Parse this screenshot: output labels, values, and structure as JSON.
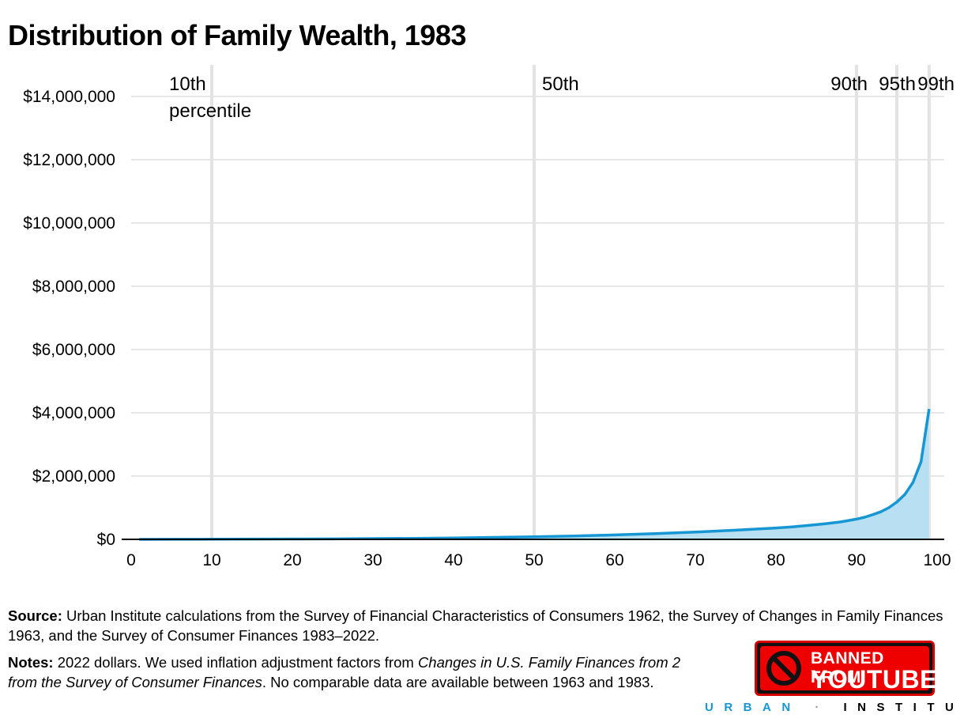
{
  "header": {
    "title": "Distribution of Family Wealth, 1983"
  },
  "chart_data": {
    "type": "area",
    "title": "Distribution of Family Wealth, 1983",
    "xlabel": "",
    "ylabel": "",
    "xlim": [
      0,
      100
    ],
    "ylim": [
      0,
      14000000
    ],
    "x_ticks": [
      "0",
      "10",
      "20",
      "30",
      "40",
      "50",
      "60",
      "70",
      "80",
      "90",
      "100"
    ],
    "y_ticks": [
      "$0",
      "$2,000,000",
      "$4,000,000",
      "$6,000,000",
      "$8,000,000",
      "$10,000,000",
      "$12,000,000",
      "$14,000,000"
    ],
    "grid": true,
    "percentile_markers": [
      {
        "x": 10,
        "label": "10th",
        "sublabel": "percentile"
      },
      {
        "x": 50,
        "label": "50th",
        "sublabel": ""
      },
      {
        "x": 90,
        "label": "90th",
        "sublabel": ""
      },
      {
        "x": 95,
        "label": "95th",
        "sublabel": ""
      },
      {
        "x": 99,
        "label": "99th",
        "sublabel": ""
      }
    ],
    "series": [
      {
        "x": [
          1,
          5,
          10,
          15,
          20,
          25,
          30,
          35,
          40,
          45,
          50,
          55,
          60,
          65,
          70,
          75,
          80,
          82,
          84,
          86,
          88,
          90,
          91,
          92,
          93,
          94,
          95,
          96,
          97,
          98,
          99
        ],
        "values": [
          0,
          2000,
          5000,
          8000,
          12000,
          17000,
          24000,
          32000,
          45000,
          62000,
          80000,
          105000,
          140000,
          180000,
          230000,
          290000,
          360000,
          395000,
          440000,
          490000,
          550000,
          640000,
          700000,
          780000,
          870000,
          1000000,
          1180000,
          1420000,
          1800000,
          2450000,
          4120000
        ],
        "color": "#1696d2",
        "fill": "#b9dff3"
      }
    ]
  },
  "footer": {
    "source_label": "Source:",
    "source_text": " Urban Institute calculations from the Survey of Financial Characteristics of Consumers 1962, the Survey of Changes in Family Finances 1963, and the Survey of Consumer Finances 1983–2022.",
    "notes_label": "Notes:",
    "notes_text1": " 2022 dollars. We used inflation adjustment factors from ",
    "notes_italic1": "Changes in U.S. Family Finances from 2",
    "notes_italic2": "from the Survey of Consumer Finances",
    "notes_text2": ". No comparable data are available between 1963 and 1983."
  },
  "badge": {
    "line1": "BANNED FROM",
    "line2": "YOUTUBE",
    "icon": "no-entry-icon"
  },
  "brand": {
    "part1": "URBAN",
    "separator": "·",
    "part2": "INSTITUTE"
  }
}
